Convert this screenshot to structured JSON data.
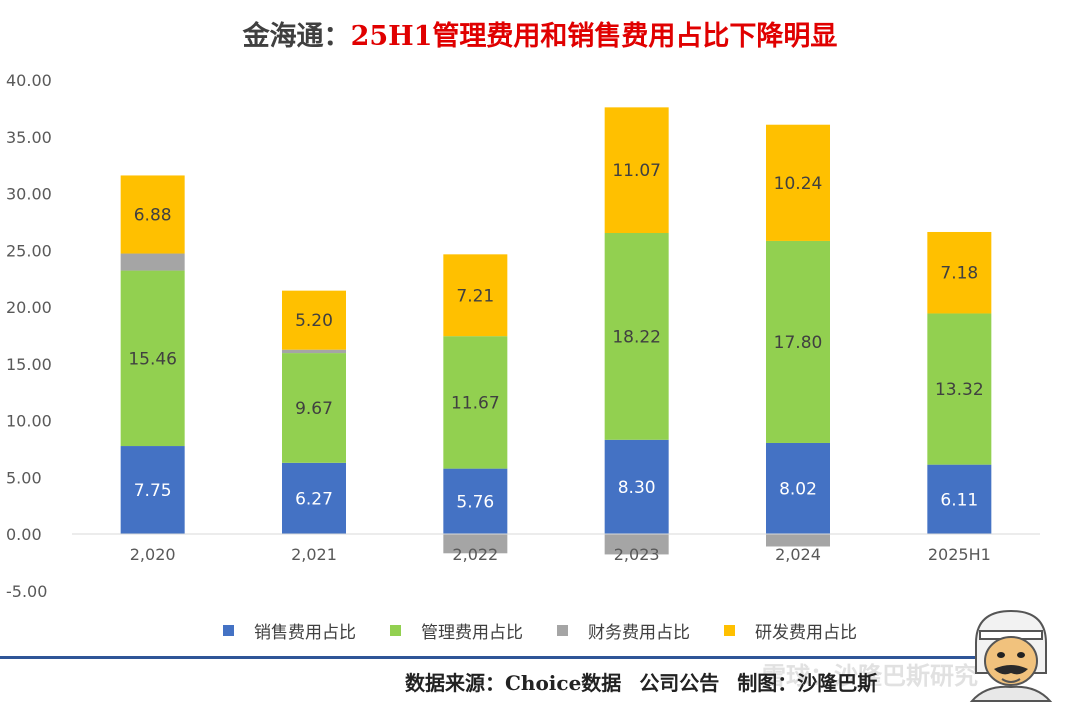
{
  "title": {
    "company": "金海通：",
    "headline": "25H1管理费用和销售费用占比下降明显"
  },
  "chart_data": {
    "type": "bar",
    "stacked": true,
    "categories": [
      "2,020",
      "2,021",
      "2,022",
      "2,023",
      "2,024",
      "2025H1"
    ],
    "series": [
      {
        "name": "销售费用占比",
        "color": "#4472c4",
        "values": [
          7.75,
          6.27,
          5.76,
          8.3,
          8.02,
          6.11
        ],
        "labels": [
          "7.75",
          "6.27",
          "5.76",
          "8.30",
          "8.02",
          "6.11"
        ],
        "label_color": "#ffffff"
      },
      {
        "name": "管理费用占比",
        "color": "#92d050",
        "values": [
          15.46,
          9.67,
          11.67,
          18.22,
          17.8,
          13.32
        ],
        "labels": [
          "15.46",
          "9.67",
          "11.67",
          "18.22",
          "17.80",
          "13.32"
        ],
        "label_color": "#404040"
      },
      {
        "name": "财务费用占比",
        "color": "#a5a5a5",
        "values": [
          1.5,
          0.3,
          -1.7,
          -1.8,
          -1.1,
          0.0
        ],
        "labels": [
          null,
          null,
          null,
          null,
          null,
          null
        ],
        "label_color": "#404040"
      },
      {
        "name": "研发费用占比",
        "color": "#ffc000",
        "values": [
          6.88,
          5.2,
          7.21,
          11.07,
          10.24,
          7.18
        ],
        "labels": [
          "6.88",
          "5.20",
          "7.21",
          "11.07",
          "10.24",
          "7.18"
        ],
        "label_color": "#404040"
      }
    ],
    "y_ticks": [
      "40.00",
      "35.00",
      "30.00",
      "25.00",
      "20.00",
      "15.00",
      "10.00",
      "5.00",
      "0.00",
      "-5.00"
    ],
    "ylim": [
      -5,
      40
    ],
    "xlabel": "",
    "ylabel": "",
    "legend_position": "bottom"
  },
  "footer": {
    "source": "数据来源：Choice数据",
    "publisher": "公司公告",
    "author": "制图：沙隆巴斯",
    "watermark": "雪球：沙隆巴斯研究"
  }
}
